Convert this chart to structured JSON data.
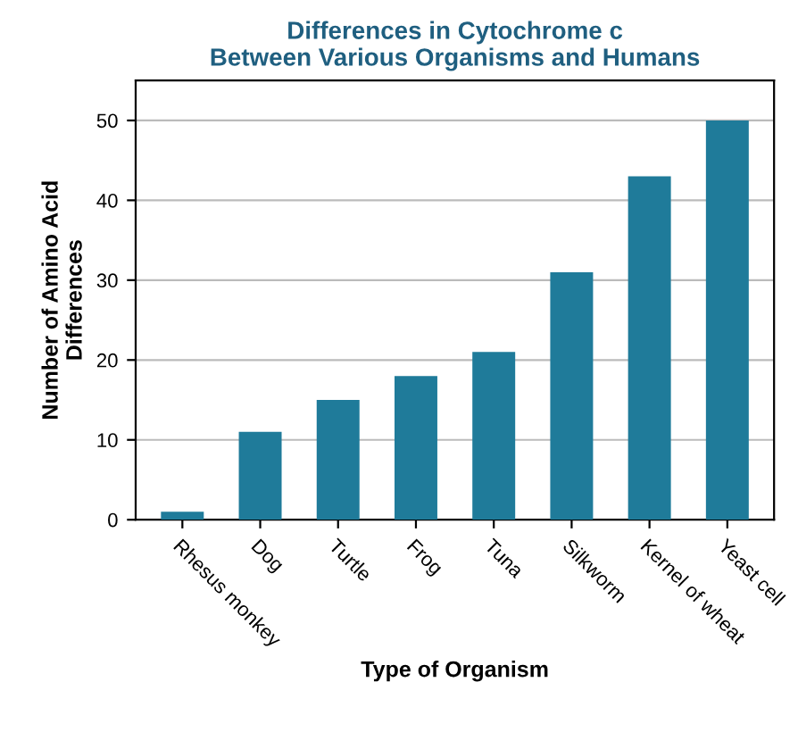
{
  "chart_data": {
    "type": "bar",
    "title": "Differences in Cytochrome c\nBetween Various Organisms and Humans",
    "xlabel": "Type of Organism",
    "ylabel": "Number of Amino Acid\nDifferences",
    "categories": [
      "Rhesus monkey",
      "Dog",
      "Turtle",
      "Frog",
      "Tuna",
      "Silkworm",
      "Kernel of wheat",
      "Yeast cell"
    ],
    "values": [
      1,
      11,
      15,
      18,
      21,
      31,
      43,
      50
    ],
    "color": "#1f7b9a",
    "ylim": [
      0,
      55
    ],
    "yticks": [
      0,
      10,
      20,
      30,
      40,
      50
    ],
    "grid": "y"
  }
}
